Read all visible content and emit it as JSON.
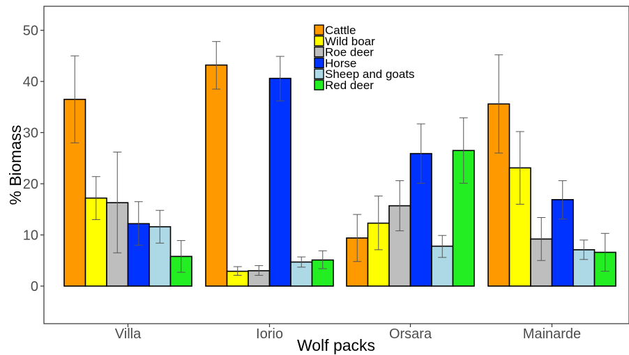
{
  "chart_data": {
    "type": "bar",
    "xlabel": "Wolf packs",
    "ylabel": "% Biomass",
    "ylim": [
      -7,
      55
    ],
    "yticks": [
      "0",
      "10",
      "20",
      "30",
      "40",
      "50"
    ],
    "grid": false,
    "legend_position": "top-center",
    "categories": [
      "Villa",
      "Iorio",
      "Orsara",
      "Mainarde"
    ],
    "series": [
      {
        "name": "Cattle",
        "color": "#FF9900",
        "values": [
          36.5,
          43.2,
          9.4,
          35.6
        ],
        "err_low": [
          28.0,
          38.5,
          4.8,
          26.0
        ],
        "err_high": [
          45.0,
          47.8,
          14.0,
          45.2
        ]
      },
      {
        "name": "Wild boar",
        "color": "#FFFF00",
        "values": [
          17.2,
          2.9,
          12.3,
          23.1
        ],
        "err_low": [
          13.0,
          2.1,
          7.1,
          16.0
        ],
        "err_high": [
          21.4,
          3.8,
          17.6,
          30.2
        ]
      },
      {
        "name": "Roe deer",
        "color": "#BEBEBE",
        "values": [
          16.3,
          3.0,
          15.7,
          9.2
        ],
        "err_low": [
          6.5,
          2.1,
          10.8,
          5.0
        ],
        "err_high": [
          26.2,
          4.0,
          20.6,
          13.4
        ]
      },
      {
        "name": "Horse",
        "color": "#0033FF",
        "values": [
          12.2,
          40.6,
          25.9,
          16.9
        ],
        "err_low": [
          8.0,
          36.2,
          20.1,
          13.1
        ],
        "err_high": [
          16.5,
          44.9,
          31.7,
          20.6
        ]
      },
      {
        "name": "Sheep and goats",
        "color": "#ADD8E6",
        "values": [
          11.6,
          4.7,
          7.8,
          7.1
        ],
        "err_low": [
          8.4,
          3.7,
          5.6,
          5.2
        ],
        "err_high": [
          14.8,
          5.7,
          9.9,
          9.0
        ]
      },
      {
        "name": "Red deer",
        "color": "#22EE22",
        "values": [
          5.8,
          5.1,
          26.5,
          6.6
        ],
        "err_low": [
          2.7,
          3.4,
          20.1,
          2.9
        ],
        "err_high": [
          8.9,
          6.9,
          32.9,
          10.3
        ]
      }
    ]
  }
}
